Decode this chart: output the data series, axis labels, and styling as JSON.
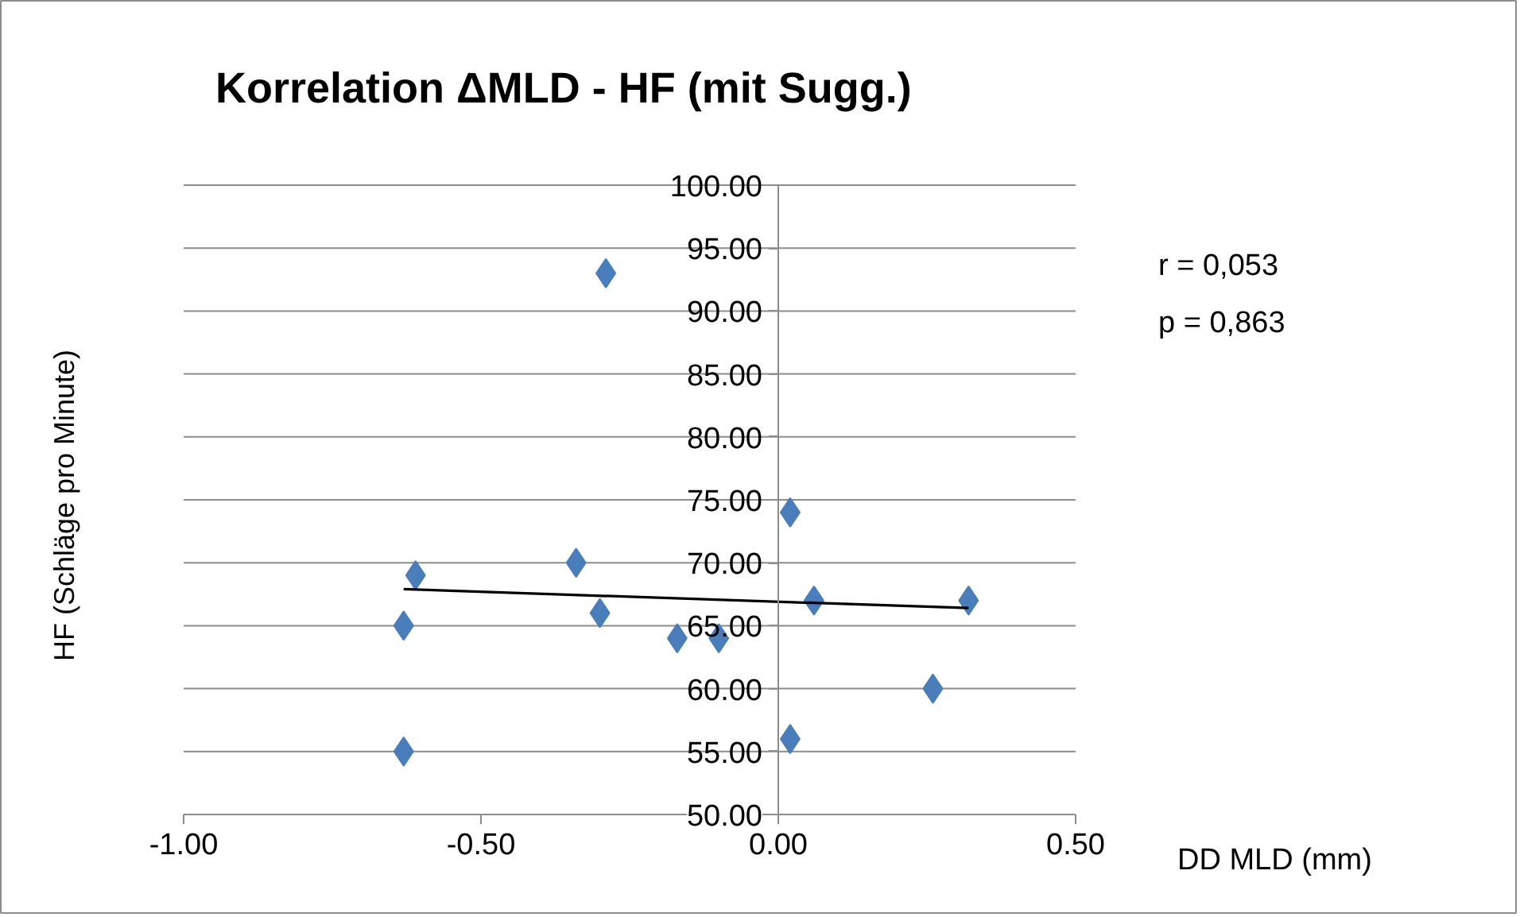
{
  "chart_data": {
    "type": "scatter",
    "title": "Korrelation ΔMLD - HF (mit Sugg.)",
    "xlabel": "DD MLD  (mm)",
    "ylabel": "HF (Schläge  pro Minute)",
    "annotations": [
      "r = 0,053",
      "p = 0,863"
    ],
    "marker": "diamond",
    "grid": "y",
    "xlim": [
      -1.0,
      0.5
    ],
    "ylim": [
      50,
      100
    ],
    "xticks": [
      {
        "value": -1.0,
        "label": "-1.00"
      },
      {
        "value": -0.5,
        "label": "-0.50"
      },
      {
        "value": 0,
        "label": "0.00"
      },
      {
        "value": 0.5,
        "label": "0.50"
      }
    ],
    "yticks": [
      {
        "value": 50,
        "label": "50.00"
      },
      {
        "value": 55,
        "label": "55.00"
      },
      {
        "value": 60,
        "label": "60.00"
      },
      {
        "value": 65,
        "label": "65.00"
      },
      {
        "value": 70,
        "label": "70.00"
      },
      {
        "value": 75,
        "label": "75.00"
      },
      {
        "value": 80,
        "label": "80.00"
      },
      {
        "value": 85,
        "label": "85.00"
      },
      {
        "value": 90,
        "label": "90.00"
      },
      {
        "value": 95,
        "label": "95.00"
      },
      {
        "value": 100,
        "label": "100.00"
      }
    ],
    "series": [
      {
        "color": "#4a7ebb",
        "x": [
          -0.29,
          -0.61,
          -0.63,
          -0.63,
          -0.34,
          -0.3,
          -0.17,
          -0.1,
          0.02,
          0.06,
          0.02,
          0.26,
          0.32
        ],
        "values": [
          93,
          69,
          65,
          55,
          70,
          66,
          64,
          64,
          74,
          67,
          56,
          60,
          67
        ]
      },
      {
        "type": "line",
        "color": "#000000",
        "marker": "none",
        "x": [
          -0.63,
          0.32
        ],
        "values": [
          67.9,
          66.4
        ]
      }
    ]
  }
}
